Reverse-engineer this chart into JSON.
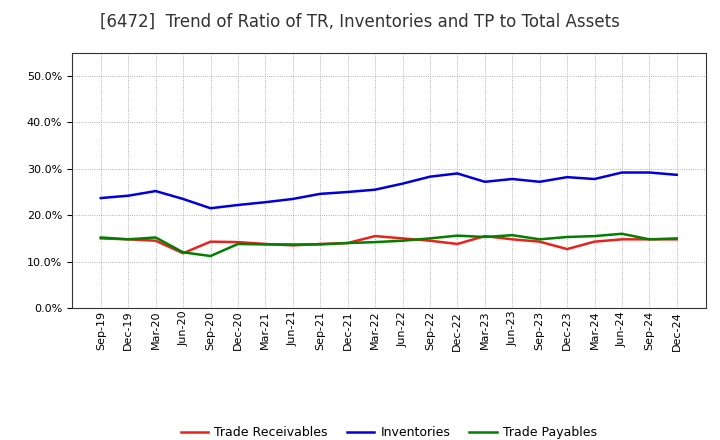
{
  "title": "[6472]  Trend of Ratio of TR, Inventories and TP to Total Assets",
  "x_labels": [
    "Sep-19",
    "Dec-19",
    "Mar-20",
    "Jun-20",
    "Sep-20",
    "Dec-20",
    "Mar-21",
    "Jun-21",
    "Sep-21",
    "Dec-21",
    "Mar-22",
    "Jun-22",
    "Sep-22",
    "Dec-22",
    "Mar-23",
    "Jun-23",
    "Sep-23",
    "Dec-23",
    "Mar-24",
    "Jun-24",
    "Sep-24",
    "Dec-24"
  ],
  "trade_receivables": [
    0.15,
    0.148,
    0.145,
    0.118,
    0.143,
    0.142,
    0.138,
    0.135,
    0.138,
    0.14,
    0.155,
    0.15,
    0.145,
    0.138,
    0.155,
    0.148,
    0.143,
    0.127,
    0.143,
    0.148,
    0.148,
    0.148
  ],
  "inventories": [
    0.237,
    0.242,
    0.252,
    0.235,
    0.215,
    0.222,
    0.228,
    0.235,
    0.246,
    0.25,
    0.255,
    0.268,
    0.283,
    0.29,
    0.272,
    0.278,
    0.272,
    0.282,
    0.278,
    0.292,
    0.292,
    0.287
  ],
  "trade_payables": [
    0.152,
    0.148,
    0.152,
    0.12,
    0.112,
    0.138,
    0.137,
    0.137,
    0.137,
    0.14,
    0.142,
    0.145,
    0.15,
    0.156,
    0.153,
    0.157,
    0.148,
    0.153,
    0.155,
    0.16,
    0.148,
    0.15
  ],
  "line_color_tr": "#e8231e",
  "line_color_inv": "#0000dd",
  "line_color_tp": "#008000",
  "ylim": [
    0.0,
    0.55
  ],
  "yticks": [
    0.0,
    0.1,
    0.2,
    0.3,
    0.4,
    0.5
  ],
  "background_color": "#ffffff",
  "grid_color": "#999999",
  "title_fontsize": 12,
  "title_color": "#333333",
  "legend_entries": [
    "Trade Receivables",
    "Inventories",
    "Trade Payables"
  ],
  "linewidth": 1.8,
  "tick_fontsize": 8.0,
  "legend_fontsize": 9
}
